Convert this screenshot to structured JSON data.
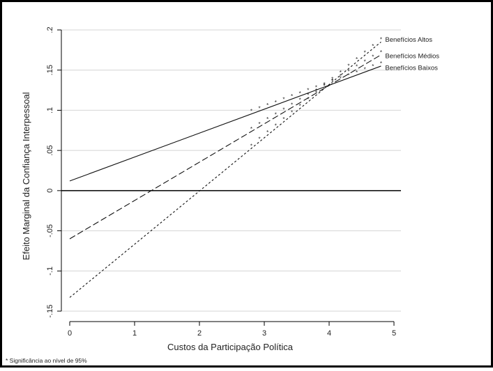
{
  "chart_data": {
    "type": "line",
    "title": "",
    "xlabel": "Custos da Participação Política",
    "ylabel": "Efeito Marginal da Confiança Interpessoal",
    "xlim": [
      0,
      5
    ],
    "ylim": [
      -0.15,
      0.2
    ],
    "x_ticks": [
      "0",
      "1",
      "2",
      "3",
      "4",
      "5"
    ],
    "y_ticks": [
      ".2",
      ".15",
      ".1",
      ".05",
      "0",
      "-.05",
      "-.1",
      "-.15"
    ],
    "grid": "horizontal",
    "reference_line_y": 0,
    "series": [
      {
        "name": "Benefícios Altos",
        "style": "dotted",
        "x": [
          0,
          4.8
        ],
        "y": [
          -0.133,
          0.185
        ],
        "significance_from_x": 2.8,
        "significance_marker": "*"
      },
      {
        "name": "Benefícios Médios",
        "style": "dashed",
        "x": [
          0,
          4.8
        ],
        "y": [
          -0.06,
          0.169
        ],
        "significance_from_x": 2.8,
        "significance_marker": "*"
      },
      {
        "name": "Benefícios Baixos",
        "style": "solid",
        "x": [
          0,
          4.8
        ],
        "y": [
          0.012,
          0.155
        ],
        "significance_from_x": 2.8,
        "significance_marker": "*"
      }
    ],
    "footnote": "* Significância ao nível de 95%"
  }
}
